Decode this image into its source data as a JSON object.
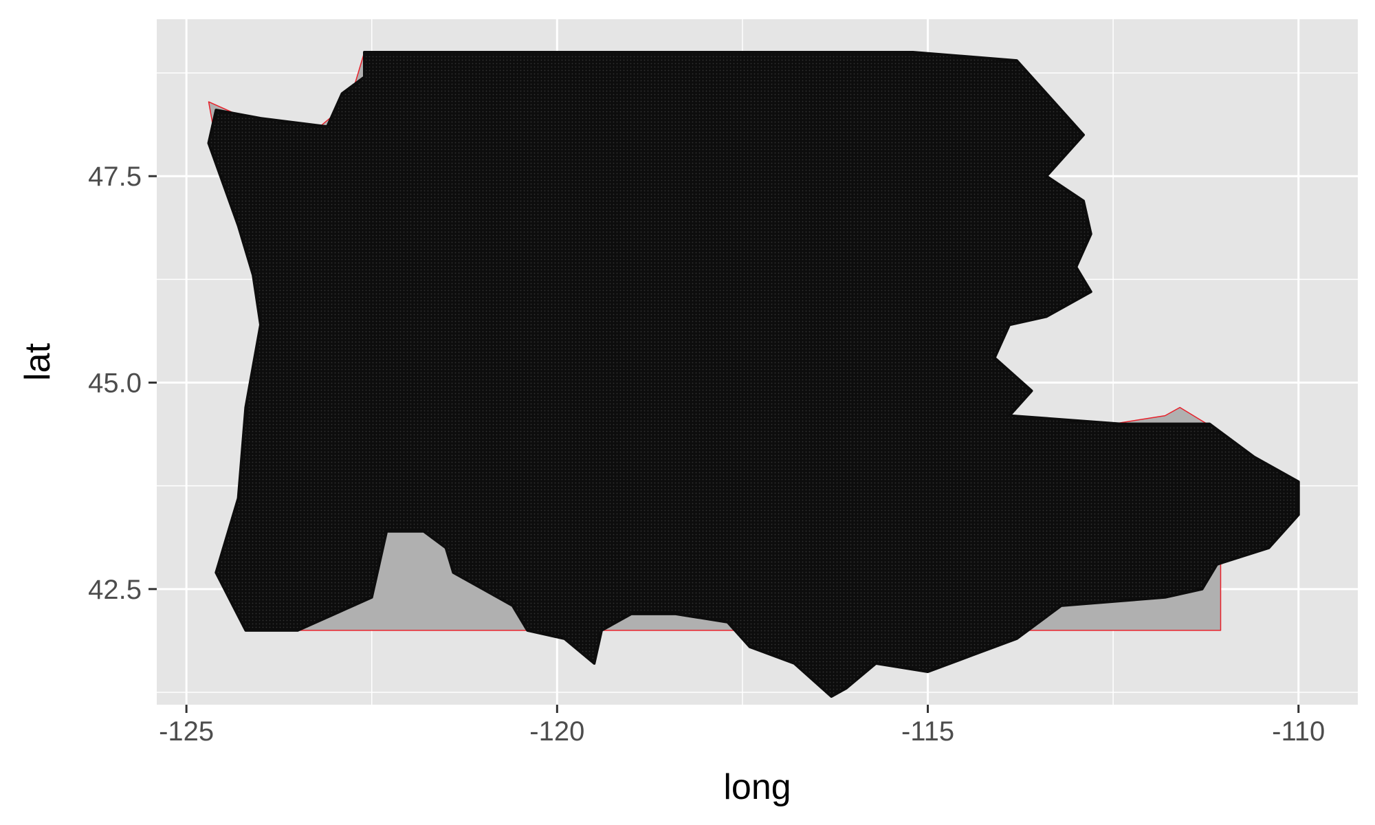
{
  "chart_data": {
    "type": "scatter",
    "title": "",
    "xlabel": "long",
    "ylabel": "lat",
    "xlim": [
      -125.4,
      -109.2
    ],
    "ylim": [
      41.1,
      49.4
    ],
    "x_ticks": [
      -125,
      -120,
      -115,
      -110
    ],
    "x_tick_labels": [
      "-125",
      "-120",
      "-115",
      "-110"
    ],
    "y_ticks": [
      42.5,
      45.0,
      47.5
    ],
    "y_tick_labels": [
      "42.5",
      "45.0",
      "47.5"
    ],
    "grid": true,
    "legend": "none",
    "colors": {
      "panel_background": "#e5e5e5",
      "grid": "#ffffff",
      "polygon_fill": "#b0b0b0",
      "polygon_outline": "#e8202a",
      "points": "#0d0d0d"
    },
    "layers": [
      {
        "type": "polygon",
        "description": "Pacific Northwest state outline (Washington, Oregon, Idaho)",
        "outline": [
          [
            -124.7,
            48.4
          ],
          [
            -124.2,
            48.2
          ],
          [
            -123.2,
            48.1
          ],
          [
            -122.8,
            48.4
          ],
          [
            -122.6,
            49.0
          ],
          [
            -117.0,
            49.0
          ],
          [
            -116.0,
            49.0
          ],
          [
            -116.05,
            48.0
          ],
          [
            -116.05,
            47.0
          ],
          [
            -117.0,
            46.45
          ],
          [
            -116.9,
            46.0
          ],
          [
            -116.6,
            45.8
          ],
          [
            -116.3,
            45.3
          ],
          [
            -114.5,
            44.4
          ],
          [
            -112.5,
            44.5
          ],
          [
            -111.8,
            44.6
          ],
          [
            -111.6,
            44.7
          ],
          [
            -111.05,
            44.4
          ],
          [
            -111.05,
            42.0
          ],
          [
            -117.0,
            42.0
          ],
          [
            -124.2,
            42.0
          ],
          [
            -124.5,
            42.7
          ],
          [
            -124.1,
            43.5
          ],
          [
            -124.0,
            44.5
          ],
          [
            -123.9,
            46.2
          ],
          [
            -124.1,
            46.9
          ],
          [
            -124.6,
            47.9
          ]
        ]
      },
      {
        "type": "points",
        "description": "dense grid of points covering the region",
        "outline": [
          [
            -124.6,
            48.3
          ],
          [
            -124.0,
            48.2
          ],
          [
            -123.1,
            48.1
          ],
          [
            -122.9,
            48.5
          ],
          [
            -122.6,
            48.7
          ],
          [
            -122.6,
            49.0
          ],
          [
            -116.3,
            49.0
          ],
          [
            -115.2,
            49.0
          ],
          [
            -113.8,
            48.9
          ],
          [
            -113.5,
            48.6
          ],
          [
            -113.2,
            48.3
          ],
          [
            -112.9,
            48.0
          ],
          [
            -113.4,
            47.5
          ],
          [
            -112.9,
            47.2
          ],
          [
            -112.8,
            46.8
          ],
          [
            -113.0,
            46.4
          ],
          [
            -112.8,
            46.1
          ],
          [
            -113.4,
            45.8
          ],
          [
            -113.9,
            45.7
          ],
          [
            -114.1,
            45.3
          ],
          [
            -113.6,
            44.9
          ],
          [
            -113.9,
            44.6
          ],
          [
            -112.4,
            44.5
          ],
          [
            -111.2,
            44.5
          ],
          [
            -110.6,
            44.1
          ],
          [
            -110.0,
            43.8
          ],
          [
            -110.0,
            43.4
          ],
          [
            -110.4,
            43.0
          ],
          [
            -111.1,
            42.8
          ],
          [
            -111.3,
            42.5
          ],
          [
            -111.8,
            42.4
          ],
          [
            -113.2,
            42.3
          ],
          [
            -113.8,
            41.9
          ],
          [
            -114.4,
            41.7
          ],
          [
            -115.0,
            41.5
          ],
          [
            -115.7,
            41.6
          ],
          [
            -116.1,
            41.3
          ],
          [
            -116.3,
            41.2
          ],
          [
            -116.8,
            41.6
          ],
          [
            -117.4,
            41.8
          ],
          [
            -117.7,
            42.1
          ],
          [
            -118.4,
            42.2
          ],
          [
            -119.0,
            42.2
          ],
          [
            -119.4,
            42.0
          ],
          [
            -119.5,
            41.6
          ],
          [
            -119.9,
            41.9
          ],
          [
            -120.4,
            42.0
          ],
          [
            -120.6,
            42.3
          ],
          [
            -121.0,
            42.5
          ],
          [
            -121.4,
            42.7
          ],
          [
            -121.5,
            43.0
          ],
          [
            -121.8,
            43.2
          ],
          [
            -122.3,
            43.2
          ],
          [
            -122.4,
            42.8
          ],
          [
            -122.5,
            42.4
          ],
          [
            -123.0,
            42.2
          ],
          [
            -123.5,
            42.0
          ],
          [
            -124.2,
            42.0
          ],
          [
            -124.6,
            42.7
          ],
          [
            -124.3,
            43.6
          ],
          [
            -124.2,
            44.7
          ],
          [
            -124.0,
            45.7
          ],
          [
            -124.1,
            46.3
          ],
          [
            -124.3,
            46.9
          ],
          [
            -124.7,
            47.9
          ]
        ]
      }
    ]
  }
}
